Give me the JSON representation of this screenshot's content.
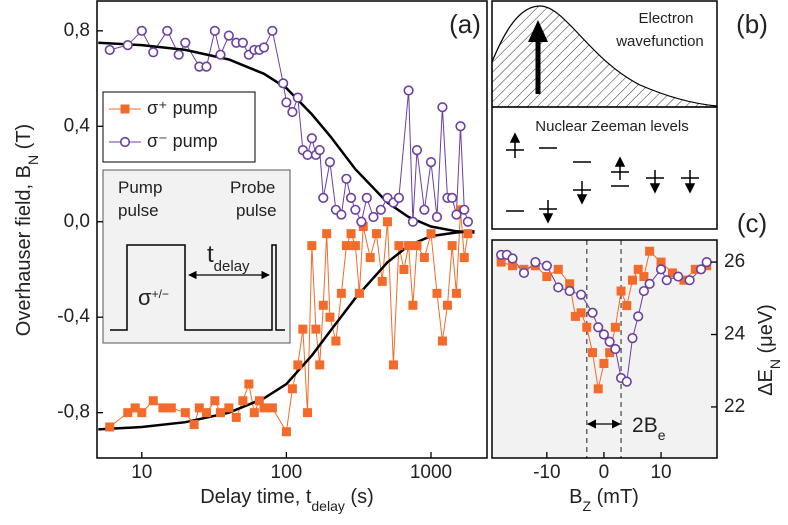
{
  "chart_data": [
    {
      "type": "line",
      "panel_label": "(a)",
      "xlog": true,
      "xlim": [
        4.9,
        2440
      ],
      "xticks": [
        10,
        100,
        1000
      ],
      "ylim": [
        -0.99,
        0.925
      ],
      "yticks": [
        {
          "value": -0.8,
          "label": "-0,8"
        },
        {
          "value": -0.4,
          "label": "-0,4"
        },
        {
          "value": 0,
          "label": "0,0"
        },
        {
          "value": 0.4,
          "label": "0,4"
        },
        {
          "value": 0.8,
          "label": "0,8"
        }
      ],
      "x_label": {
        "text": "Delay time, t",
        "sub": "delay",
        "after": " (s)"
      },
      "y_label": {
        "text": "Overhauser field, B",
        "sub": "N",
        "after": " (T)"
      },
      "legend": "upper left",
      "series": [
        {
          "name": "σ⁺ pump",
          "color": "#f26b2a",
          "marker": "square",
          "x": [
            6,
            8,
            9,
            10,
            12,
            14,
            16,
            20,
            23,
            25,
            28,
            32,
            35,
            40,
            45,
            50,
            55,
            60,
            65,
            70,
            80,
            100,
            110,
            120,
            130,
            140,
            150,
            160,
            170,
            180,
            190,
            200,
            220,
            240,
            260,
            280,
            300,
            320,
            340,
            380,
            420,
            460,
            500,
            550,
            600,
            650,
            700,
            750,
            800,
            900,
            1000,
            1100,
            1200,
            1300,
            1400,
            1500,
            1600,
            1700,
            1800
          ],
          "values": [
            -0.86,
            -0.8,
            -0.78,
            -0.8,
            -0.75,
            -0.78,
            -0.78,
            -0.8,
            -0.85,
            -0.78,
            -0.8,
            -0.75,
            -0.8,
            -0.78,
            -0.82,
            -0.75,
            -0.68,
            -0.8,
            -0.75,
            -0.78,
            -0.78,
            -0.88,
            -0.7,
            -0.6,
            -0.45,
            -0.8,
            -0.1,
            -0.45,
            -0.6,
            -0.35,
            -0.05,
            -0.4,
            -0.5,
            -0.3,
            -0.1,
            -0.05,
            -0.1,
            -0.3,
            -0.02,
            -0.15,
            -0.05,
            -0.25,
            0.0,
            -0.6,
            -0.1,
            -0.2,
            -0.1,
            -0.35,
            -0.1,
            -0.15,
            -0.05,
            -0.3,
            -0.5,
            -0.35,
            -0.1,
            -0.3,
            0.05,
            -0.15,
            -0.05
          ]
        },
        {
          "name": "σ⁻ pump",
          "color": "#6b3fa0",
          "marker": "circle",
          "x": [
            6,
            8,
            10,
            12,
            15,
            18,
            20,
            25,
            28,
            32,
            35,
            40,
            45,
            50,
            55,
            60,
            65,
            70,
            80,
            95,
            100,
            110,
            120,
            130,
            140,
            150,
            160,
            170,
            180,
            200,
            220,
            240,
            260,
            280,
            300,
            330,
            360,
            400,
            450,
            500,
            550,
            600,
            700,
            750,
            800,
            900,
            1000,
            1100,
            1200,
            1300,
            1400,
            1500,
            1600,
            1700,
            1800
          ],
          "values": [
            0.72,
            0.74,
            0.8,
            0.71,
            0.8,
            0.7,
            0.75,
            0.65,
            0.65,
            0.8,
            0.7,
            0.78,
            0.75,
            0.75,
            0.7,
            0.72,
            0.72,
            0.73,
            0.8,
            0.58,
            0.5,
            0.46,
            0.52,
            0.3,
            0.28,
            0.35,
            0.28,
            0.3,
            0.1,
            0.25,
            0.05,
            0.03,
            0.18,
            0.1,
            0.05,
            0.0,
            0.1,
            0.02,
            0.05,
            0.1,
            0.08,
            0.1,
            0.55,
            0.0,
            0.3,
            0.05,
            0.25,
            0.02,
            0.48,
            0.1,
            0.1,
            0.03,
            0.4,
            0.05,
            0.0
          ]
        },
        {
          "color": "#000000",
          "x": [
            5,
            10,
            20,
            40,
            70,
            100,
            150,
            200,
            300,
            500,
            700,
            1000,
            1500,
            2000
          ],
          "values": [
            0.75,
            0.74,
            0.72,
            0.68,
            0.62,
            0.56,
            0.45,
            0.36,
            0.22,
            0.08,
            0.02,
            -0.02,
            -0.04,
            -0.045
          ]
        },
        {
          "color": "#000000",
          "x": [
            5,
            10,
            20,
            40,
            70,
            100,
            150,
            200,
            300,
            500,
            700,
            1000,
            1500,
            2000
          ],
          "values": [
            -0.87,
            -0.86,
            -0.84,
            -0.8,
            -0.74,
            -0.68,
            -0.56,
            -0.46,
            -0.32,
            -0.17,
            -0.1,
            -0.06,
            -0.045,
            -0.04
          ]
        }
      ],
      "inset": {
        "pump": [
          "Pump",
          "pulse"
        ],
        "probe": [
          "Probe",
          "pulse"
        ],
        "t": "t",
        "t_sub": "delay",
        "sigma": "σ",
        "sigma_sup": "+/−"
      }
    },
    {
      "type": "line",
      "panel_label": "(c)",
      "y_axis": "right",
      "background": "#f2f2f2",
      "xlim": [
        -19.6,
        19.8
      ],
      "xticks": [
        -10,
        0,
        10
      ],
      "ylim": [
        20.59,
        26.61
      ],
      "yticks": [
        22,
        24,
        26
      ],
      "x_label": {
        "text": "B",
        "sub": "Z",
        "after": " (mT)"
      },
      "y_label": {
        "text": "ΔE",
        "sub": "N",
        "after": " (μeV)"
      },
      "vlines": [
        -3,
        3
      ],
      "annotation": {
        "text": "2B",
        "sub": "e"
      },
      "series": [
        {
          "color": "#f26b2a",
          "marker": "square",
          "x": [
            -18,
            -16,
            -14,
            -12,
            -10,
            -8,
            -6,
            -5,
            -4,
            -3,
            -2,
            -1,
            0,
            1,
            2,
            3,
            4,
            5,
            6,
            7,
            8,
            10,
            12,
            14,
            16,
            18
          ],
          "values": [
            26,
            25.9,
            25.8,
            25.9,
            25.6,
            25.8,
            25.4,
            24.5,
            24.6,
            24.2,
            23.5,
            22.5,
            23.2,
            23.5,
            24.2,
            25.2,
            24.8,
            25.5,
            25.8,
            25.6,
            26.3,
            26,
            25.7,
            25.5,
            25.8,
            25.9
          ]
        },
        {
          "color": "#6b3fa0",
          "marker": "circle",
          "x": [
            -18,
            -17,
            -16,
            -14,
            -12,
            -10,
            -8,
            -6,
            -4,
            -2,
            -1,
            0,
            1,
            2,
            3,
            4,
            5,
            6,
            7,
            8,
            10,
            11,
            13,
            15,
            17,
            18
          ],
          "values": [
            26.2,
            26.2,
            26.1,
            25.7,
            26,
            25.9,
            25.3,
            25.2,
            25.1,
            24.6,
            24.2,
            24,
            23.8,
            23.6,
            22.8,
            22.7,
            23.9,
            24.5,
            25.2,
            25.4,
            25.8,
            25.5,
            25.6,
            25.5,
            25.8,
            26
          ]
        }
      ]
    }
  ],
  "diagram": {
    "panel_label": "(b)",
    "wavefunction": [
      "Electron",
      "wavefunction"
    ],
    "levels": "Nuclear Zeeman levels"
  }
}
